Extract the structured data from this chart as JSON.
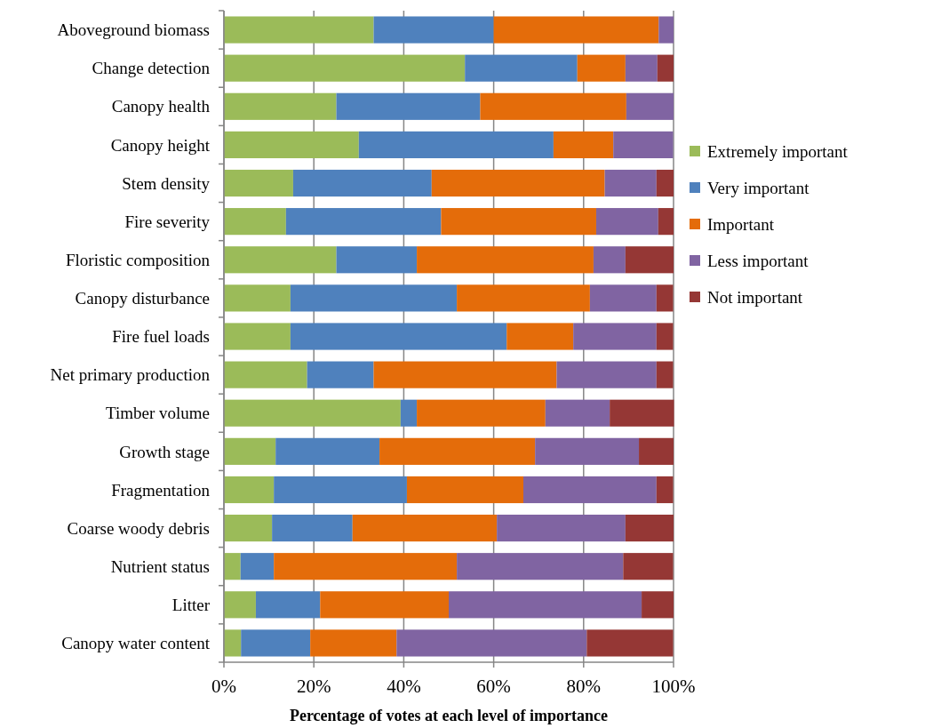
{
  "chart_data": {
    "type": "bar",
    "orientation": "horizontal",
    "stacked": true,
    "xlabel": "Percentage of votes at each level of importance",
    "categories": [
      "Aboveground biomass",
      "Change detection",
      "Canopy health",
      "Canopy height",
      "Stem density",
      "Fire severity",
      "Floristic composition",
      "Canopy disturbance",
      "Fire fuel loads",
      "Net primary production",
      "Timber volume",
      "Growth stage",
      "Fragmentation",
      "Coarse woody debris",
      "Nutrient status",
      "Litter",
      "Canopy water content"
    ],
    "series": [
      {
        "name": "Extremely important",
        "color": "#9bbb59",
        "values": [
          33.3,
          53.6,
          25,
          30,
          15.4,
          13.8,
          25,
          14.8,
          14.8,
          18.5,
          39.3,
          11.5,
          11.1,
          10.7,
          3.7,
          7.1,
          3.8
        ]
      },
      {
        "name": "Very important",
        "color": "#4f81bd",
        "values": [
          26.7,
          25,
          32,
          43.3,
          30.8,
          34.5,
          17.9,
          37,
          48.1,
          14.8,
          3.6,
          23.1,
          29.6,
          17.9,
          7.4,
          14.3,
          15.4
        ]
      },
      {
        "name": "Important",
        "color": "#e46c0a",
        "values": [
          36.7,
          10.7,
          32.5,
          13.3,
          38.5,
          34.5,
          39.3,
          29.6,
          14.8,
          40.7,
          28.6,
          34.6,
          25.9,
          32.1,
          40.7,
          28.6,
          19.2
        ]
      },
      {
        "name": "Less important",
        "color": "#8064a2",
        "values": [
          3.3,
          7.1,
          10.5,
          13.3,
          11.5,
          13.8,
          7.1,
          14.8,
          18.5,
          22.2,
          14.3,
          23.1,
          29.6,
          28.6,
          37,
          42.9,
          42.3
        ]
      },
      {
        "name": "Not important",
        "color": "#953735",
        "values": [
          0,
          3.6,
          0,
          0,
          3.8,
          3.4,
          10.7,
          3.7,
          3.7,
          3.7,
          14.3,
          7.7,
          3.7,
          10.7,
          11.1,
          7.1,
          19.2
        ]
      }
    ],
    "xlim": [
      0,
      100
    ],
    "xticks": [
      {
        "value": 0,
        "label": "0%"
      },
      {
        "value": 20,
        "label": "20%"
      },
      {
        "value": 40,
        "label": "40%"
      },
      {
        "value": 60,
        "label": "60%"
      },
      {
        "value": 80,
        "label": "80%"
      },
      {
        "value": 100,
        "label": "100%"
      }
    ],
    "grid": "x",
    "legend": "right"
  }
}
